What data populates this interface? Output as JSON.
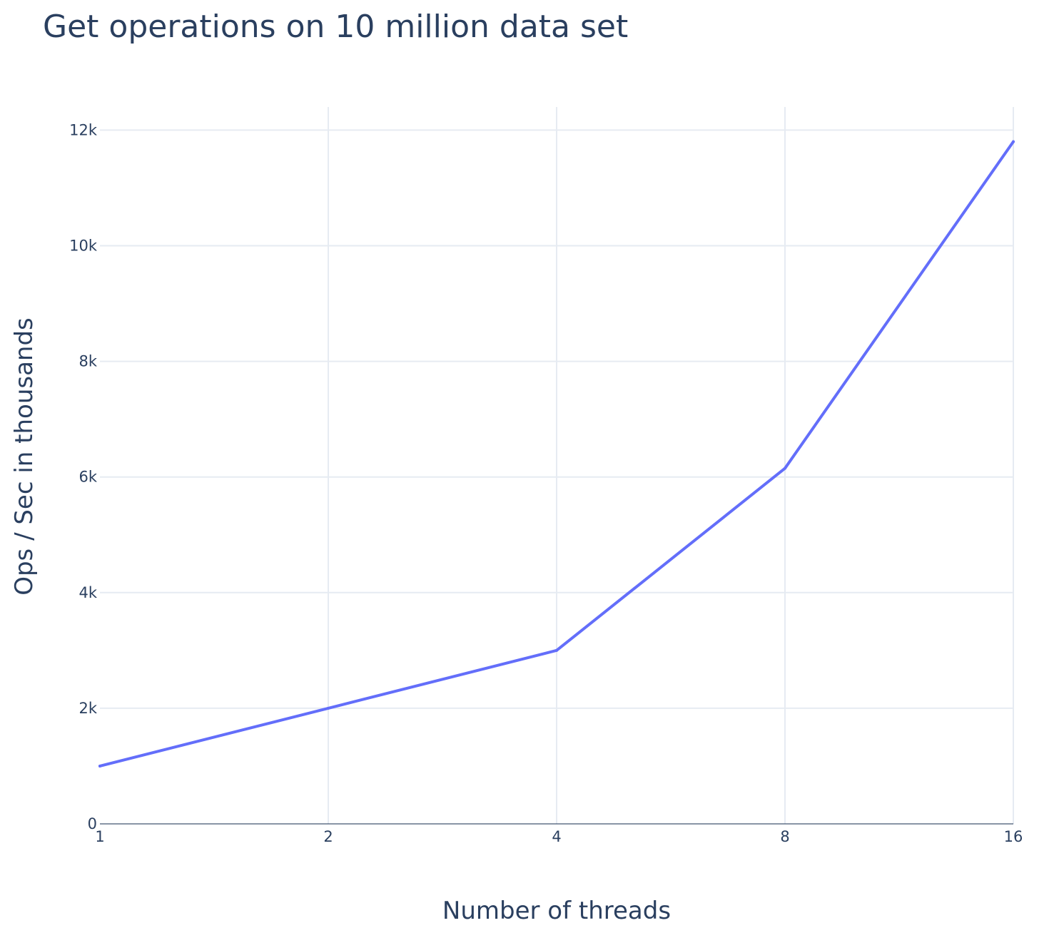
{
  "chart_data": {
    "type": "line",
    "title": "Get operations on 10 million data set",
    "xlabel": "Number of threads",
    "ylabel": "Ops / Sec in thousands",
    "x_scale": "log2",
    "x": [
      1,
      2,
      4,
      8,
      16
    ],
    "xticks": [
      "1",
      "2",
      "4",
      "8",
      "16"
    ],
    "ylim": [
      0,
      12400
    ],
    "yticks": [
      0,
      2000,
      4000,
      6000,
      8000,
      10000,
      12000
    ],
    "ytick_labels": [
      "0",
      "2k",
      "4k",
      "6k",
      "8k",
      "10k",
      "12k"
    ],
    "grid": true,
    "series": [
      {
        "values": [
          1000,
          2000,
          3000,
          6150,
          11800
        ],
        "color": "#636efa"
      }
    ]
  }
}
